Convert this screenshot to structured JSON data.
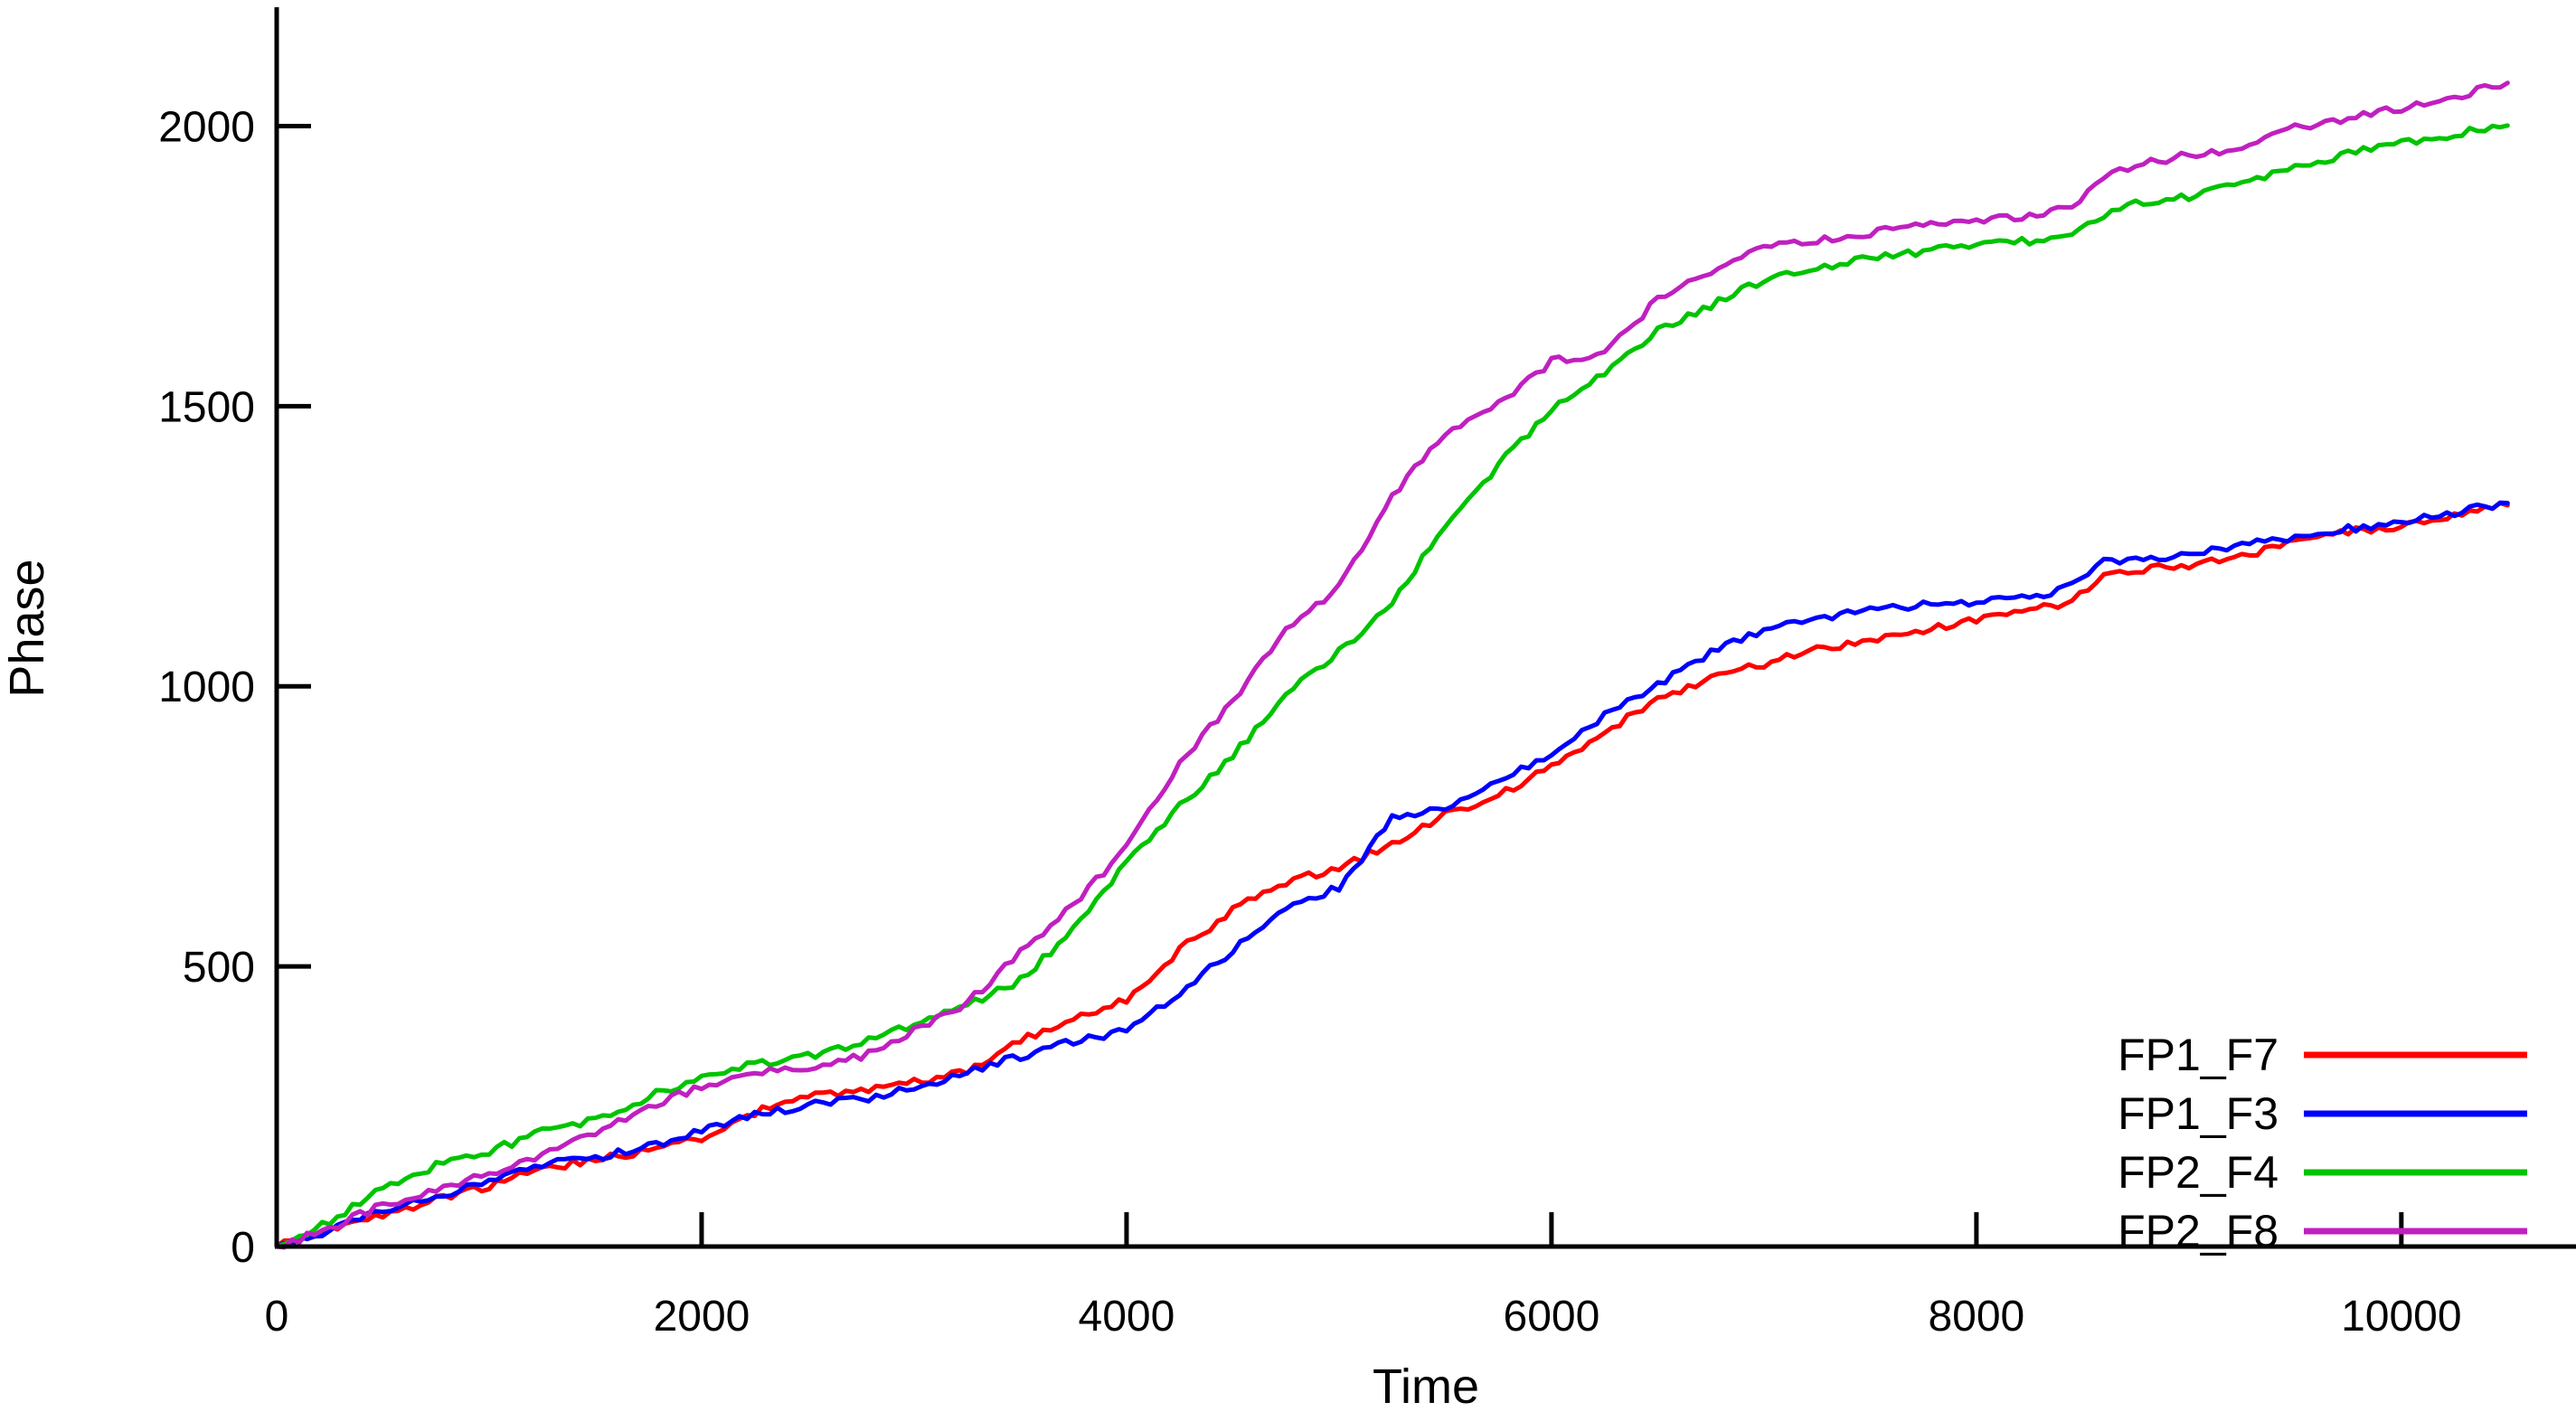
{
  "chart_data": {
    "type": "line",
    "title": "",
    "xlabel": "Time",
    "ylabel": "Phase",
    "xlim": [
      0,
      10822
    ],
    "ylim": [
      0,
      2225
    ],
    "xticks": [
      0,
      2000,
      4000,
      6000,
      8000,
      10000
    ],
    "yticks": [
      0,
      500,
      1000,
      1500,
      2000
    ],
    "grid": false,
    "legend_position": "bottom-right",
    "x": [
      0,
      250,
      500,
      750,
      1000,
      1250,
      1500,
      1750,
      2000,
      2250,
      2500,
      2750,
      3000,
      3250,
      3500,
      3750,
      4000,
      4250,
      4500,
      4750,
      5000,
      5250,
      5500,
      5750,
      6000,
      6250,
      6500,
      6750,
      7000,
      7250,
      7500,
      7750,
      8000,
      8250,
      8450,
      8600,
      8750,
      9000,
      9250,
      9500,
      9750,
      10000,
      10250,
      10500
    ],
    "series": [
      {
        "name": "FP1_F7",
        "color": "#ff0000",
        "values": [
          0,
          30,
          58,
          83,
          108,
          140,
          155,
          170,
          195,
          240,
          268,
          278,
          295,
          310,
          370,
          405,
          440,
          530,
          600,
          650,
          675,
          720,
          770,
          805,
          855,
          920,
          975,
          1015,
          1040,
          1065,
          1085,
          1100,
          1120,
          1135,
          1150,
          1200,
          1207,
          1217,
          1230,
          1258,
          1277,
          1287,
          1305,
          1323
        ]
      },
      {
        "name": "FP1_F3",
        "color": "#0000ff",
        "values": [
          0,
          28,
          65,
          90,
          118,
          145,
          160,
          178,
          205,
          235,
          252,
          262,
          285,
          310,
          340,
          365,
          385,
          450,
          530,
          600,
          641,
          763,
          785,
          830,
          876,
          950,
          1002,
          1060,
          1100,
          1120,
          1135,
          1145,
          1152,
          1160,
          1178,
          1222,
          1228,
          1236,
          1252,
          1265,
          1281,
          1292,
          1311,
          1327
        ]
      },
      {
        "name": "FP2_F4",
        "color": "#00c400",
        "values": [
          0,
          45,
          105,
          145,
          170,
          205,
          225,
          268,
          300,
          325,
          340,
          362,
          395,
          430,
          475,
          565,
          685,
          785,
          875,
          990,
          1061,
          1149,
          1288,
          1395,
          1495,
          1560,
          1635,
          1680,
          1726,
          1745,
          1765,
          1775,
          1788,
          1795,
          1810,
          1840,
          1860,
          1875,
          1898,
          1926,
          1952,
          1970,
          1985,
          2001
        ]
      },
      {
        "name": "FP2_F8",
        "color": "#c020c0",
        "values": [
          0,
          32,
          75,
          100,
          130,
          165,
          205,
          250,
          285,
          308,
          320,
          338,
          385,
          435,
          525,
          610,
          710,
          865,
          975,
          1100,
          1178,
          1340,
          1450,
          1505,
          1580,
          1595,
          1690,
          1740,
          1782,
          1795,
          1810,
          1822,
          1830,
          1840,
          1855,
          1905,
          1930,
          1948,
          1960,
          1998,
          2012,
          2032,
          2052,
          2077
        ]
      }
    ]
  }
}
